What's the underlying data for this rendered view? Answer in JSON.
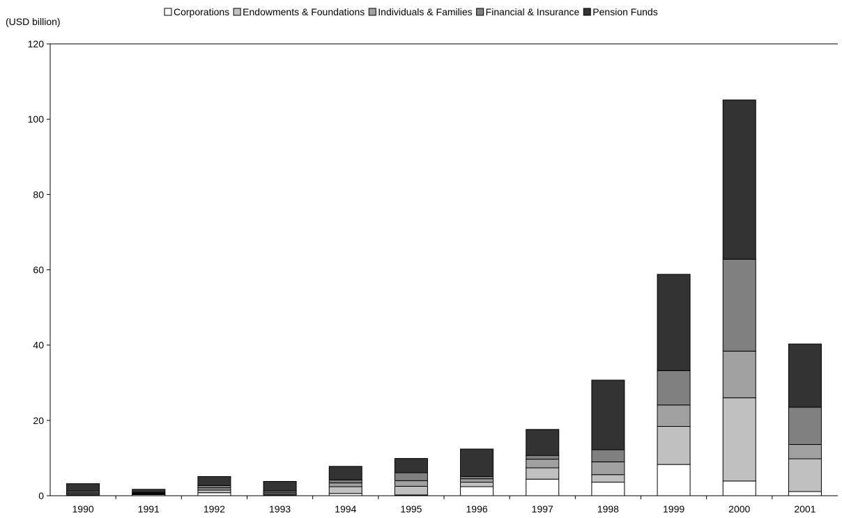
{
  "chart_data": {
    "type": "bar",
    "stacked": true,
    "title": "",
    "unit_label": "(USD billion)",
    "xlabel": "",
    "ylabel": "",
    "ylim": [
      0,
      120
    ],
    "yticks": [
      0,
      20,
      40,
      60,
      80,
      100,
      120
    ],
    "grid": false,
    "legend_position": "top",
    "categories": [
      "1990",
      "1991",
      "1992",
      "1993",
      "1994",
      "1995",
      "1996",
      "1997",
      "1998",
      "1999",
      "2000",
      "2001"
    ],
    "series": [
      {
        "name": "Corporations",
        "color": "#ffffff",
        "values": [
          0.2,
          0.3,
          0.8,
          0.2,
          0.6,
          0.2,
          2.4,
          4.4,
          3.6,
          8.3,
          3.9,
          1.1
        ]
      },
      {
        "name": "Endowments & Foundations",
        "color": "#c0c0c0",
        "values": [
          0.3,
          0.2,
          0.7,
          0.3,
          1.8,
          2.3,
          1.2,
          3.0,
          2.0,
          10.1,
          22.1,
          8.7
        ]
      },
      {
        "name": "Individuals & Families",
        "color": "#a0a0a0",
        "values": [
          0.3,
          0.2,
          0.6,
          0.4,
          1.0,
          1.5,
          0.9,
          2.3,
          3.4,
          5.7,
          12.4,
          3.8
        ]
      },
      {
        "name": "Financial & Insurance",
        "color": "#808080",
        "values": [
          0.4,
          0.2,
          0.6,
          0.4,
          0.8,
          2.1,
          0.6,
          1.0,
          3.2,
          9.1,
          24.4,
          9.9
        ]
      },
      {
        "name": "Pension Funds",
        "color": "#333333",
        "values": [
          2.0,
          0.8,
          2.4,
          2.5,
          3.6,
          3.8,
          7.3,
          6.9,
          18.5,
          25.6,
          42.3,
          16.8
        ]
      }
    ]
  }
}
